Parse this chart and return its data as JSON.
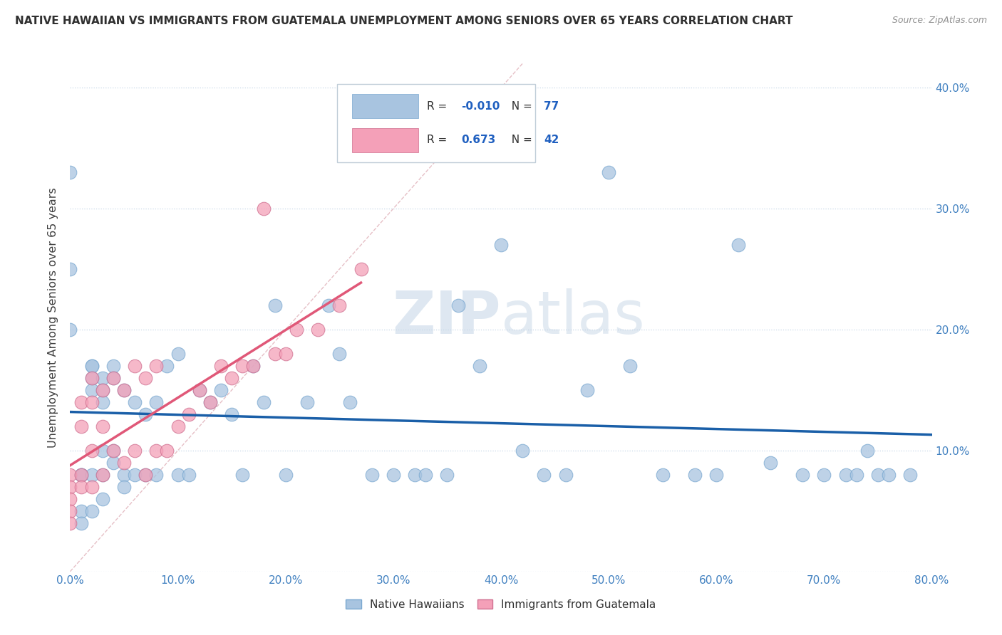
{
  "title": "NATIVE HAWAIIAN VS IMMIGRANTS FROM GUATEMALA UNEMPLOYMENT AMONG SENIORS OVER 65 YEARS CORRELATION CHART",
  "source": "Source: ZipAtlas.com",
  "ylabel": "Unemployment Among Seniors over 65 years",
  "x_min": 0.0,
  "x_max": 0.8,
  "y_min": 0.0,
  "y_max": 0.42,
  "x_ticks": [
    0.0,
    0.1,
    0.2,
    0.3,
    0.4,
    0.5,
    0.6,
    0.7,
    0.8
  ],
  "x_tick_labels": [
    "0.0%",
    "10.0%",
    "20.0%",
    "30.0%",
    "40.0%",
    "50.0%",
    "60.0%",
    "70.0%",
    "80.0%"
  ],
  "y_ticks": [
    0.0,
    0.1,
    0.2,
    0.3,
    0.4
  ],
  "y_tick_labels_right": [
    "",
    "10.0%",
    "20.0%",
    "30.0%",
    "40.0%"
  ],
  "native_hawaiian_color": "#a8c4e0",
  "guatemala_color": "#f4a0b8",
  "native_hawaiian_R": -0.01,
  "native_hawaiian_N": 77,
  "guatemala_R": 0.673,
  "guatemala_N": 42,
  "native_hawaiian_line_color": "#1a5fa8",
  "guatemala_line_color": "#e05878",
  "diagonal_line_color": "#e0b0b8",
  "background_color": "#ffffff",
  "plot_bg_color": "#ffffff",
  "watermark_zip": "ZIP",
  "watermark_atlas": "atlas",
  "legend_label_1": "Native Hawaiians",
  "legend_label_2": "Immigrants from Guatemala",
  "native_hawaiian_x": [
    0.0,
    0.0,
    0.0,
    0.01,
    0.01,
    0.01,
    0.01,
    0.01,
    0.02,
    0.02,
    0.02,
    0.02,
    0.02,
    0.02,
    0.03,
    0.03,
    0.03,
    0.03,
    0.03,
    0.03,
    0.04,
    0.04,
    0.04,
    0.04,
    0.05,
    0.05,
    0.05,
    0.06,
    0.06,
    0.07,
    0.07,
    0.08,
    0.08,
    0.09,
    0.1,
    0.1,
    0.11,
    0.12,
    0.13,
    0.14,
    0.15,
    0.16,
    0.17,
    0.18,
    0.19,
    0.2,
    0.22,
    0.24,
    0.25,
    0.26,
    0.28,
    0.3,
    0.32,
    0.33,
    0.35,
    0.36,
    0.38,
    0.4,
    0.42,
    0.44,
    0.46,
    0.48,
    0.5,
    0.52,
    0.55,
    0.58,
    0.6,
    0.62,
    0.65,
    0.68,
    0.7,
    0.72,
    0.73,
    0.74,
    0.75,
    0.76,
    0.78
  ],
  "native_hawaiian_y": [
    0.33,
    0.25,
    0.2,
    0.08,
    0.08,
    0.08,
    0.05,
    0.04,
    0.17,
    0.17,
    0.16,
    0.15,
    0.08,
    0.05,
    0.16,
    0.15,
    0.14,
    0.1,
    0.08,
    0.06,
    0.17,
    0.16,
    0.1,
    0.09,
    0.15,
    0.08,
    0.07,
    0.14,
    0.08,
    0.13,
    0.08,
    0.14,
    0.08,
    0.17,
    0.18,
    0.08,
    0.08,
    0.15,
    0.14,
    0.15,
    0.13,
    0.08,
    0.17,
    0.14,
    0.22,
    0.08,
    0.14,
    0.22,
    0.18,
    0.14,
    0.08,
    0.08,
    0.08,
    0.08,
    0.08,
    0.22,
    0.17,
    0.27,
    0.1,
    0.08,
    0.08,
    0.15,
    0.33,
    0.17,
    0.08,
    0.08,
    0.08,
    0.27,
    0.09,
    0.08,
    0.08,
    0.08,
    0.08,
    0.1,
    0.08,
    0.08,
    0.08
  ],
  "guatemala_x": [
    0.0,
    0.0,
    0.0,
    0.0,
    0.0,
    0.01,
    0.01,
    0.01,
    0.01,
    0.02,
    0.02,
    0.02,
    0.02,
    0.03,
    0.03,
    0.03,
    0.04,
    0.04,
    0.05,
    0.05,
    0.06,
    0.06,
    0.07,
    0.07,
    0.08,
    0.08,
    0.09,
    0.1,
    0.11,
    0.12,
    0.13,
    0.14,
    0.15,
    0.16,
    0.17,
    0.18,
    0.19,
    0.2,
    0.21,
    0.23,
    0.25,
    0.27
  ],
  "guatemala_y": [
    0.08,
    0.07,
    0.06,
    0.05,
    0.04,
    0.14,
    0.12,
    0.08,
    0.07,
    0.16,
    0.14,
    0.1,
    0.07,
    0.15,
    0.12,
    0.08,
    0.16,
    0.1,
    0.15,
    0.09,
    0.17,
    0.1,
    0.16,
    0.08,
    0.17,
    0.1,
    0.1,
    0.12,
    0.13,
    0.15,
    0.14,
    0.17,
    0.16,
    0.17,
    0.17,
    0.3,
    0.18,
    0.18,
    0.2,
    0.2,
    0.22,
    0.25
  ]
}
